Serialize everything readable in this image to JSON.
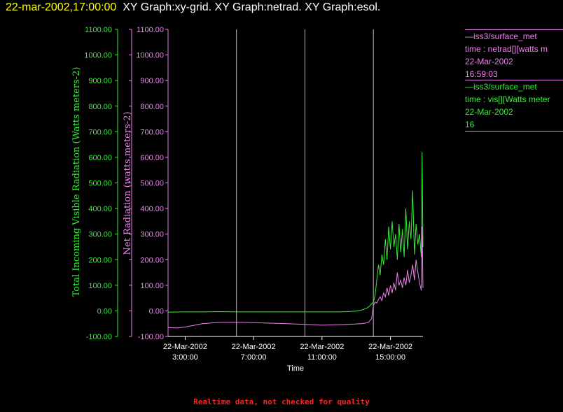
{
  "header": {
    "date_label": "22-mar-2002,17:00:00",
    "graphs_label": "XY Graph:xy-grid.  XY Graph:netrad.  XY Graph:esol."
  },
  "legend": {
    "netrad": {
      "source": "—iss3/surface_met",
      "variable": "time : netrad[][watts m",
      "date": "22-Mar-2002",
      "time": "16:59:03"
    },
    "vis": {
      "source": "—iss3/surface_met",
      "variable": "time : vis[][Watts meter",
      "date": "22-Mar-2002",
      "time": "16"
    }
  },
  "footer": {
    "note": "Realtime data, not checked for quality"
  },
  "chart_data": {
    "type": "line",
    "xlabel": "Time",
    "x_ticks": [
      {
        "date": "22-Mar-2002",
        "time": "3:00:00",
        "hour": 3
      },
      {
        "date": "22-Mar-2002",
        "time": "7:00:00",
        "hour": 7
      },
      {
        "date": "22-Mar-2002",
        "time": "11:00:00",
        "hour": 11
      },
      {
        "date": "22-Mar-2002",
        "time": "15:00:00",
        "hour": 15
      }
    ],
    "xlim_hours": [
      2.0,
      16.9
    ],
    "vertical_grid_hours": [
      6,
      10,
      14
    ],
    "y_axes": [
      {
        "id": "vis",
        "label": "Total Incoming Visible Radiation (Watts meters-2)",
        "color": "#33ee33",
        "ylim": [
          -100,
          1100
        ],
        "ticks": [
          "-100.00",
          "0.00",
          "100.00",
          "200.00",
          "300.00",
          "400.00",
          "500.00",
          "600.00",
          "700.00",
          "800.00",
          "900.00",
          "1000.00",
          "1100.00"
        ]
      },
      {
        "id": "netrad",
        "label": "Net Radiation (watts meters-2)",
        "color": "#ee82ee",
        "ylim": [
          -100,
          1100
        ],
        "ticks": [
          "-100.00",
          "0.00",
          "100.00",
          "200.00",
          "300.00",
          "400.00",
          "500.00",
          "600.00",
          "700.00",
          "800.00",
          "900.00",
          "1000.00",
          "1100.00"
        ]
      }
    ],
    "series": [
      {
        "id": "vis",
        "color": "#33ee33",
        "points": [
          [
            2.0,
            -5
          ],
          [
            3,
            -4
          ],
          [
            4,
            -4
          ],
          [
            5,
            -3
          ],
          [
            6,
            -4
          ],
          [
            7,
            -4
          ],
          [
            8,
            -4
          ],
          [
            9,
            -4
          ],
          [
            10,
            -4
          ],
          [
            11,
            -4
          ],
          [
            12,
            -4
          ],
          [
            12.5,
            -3
          ],
          [
            13,
            -1
          ],
          [
            13.3,
            3
          ],
          [
            13.6,
            10
          ],
          [
            13.8,
            20
          ],
          [
            14,
            35
          ],
          [
            14.1,
            60
          ],
          [
            14.2,
            120
          ],
          [
            14.3,
            180
          ],
          [
            14.4,
            140
          ],
          [
            14.5,
            220
          ],
          [
            14.6,
            180
          ],
          [
            14.7,
            280
          ],
          [
            14.8,
            200
          ],
          [
            14.9,
            330
          ],
          [
            15,
            240
          ],
          [
            15.1,
            350
          ],
          [
            15.2,
            250
          ],
          [
            15.3,
            300
          ],
          [
            15.4,
            200
          ],
          [
            15.5,
            340
          ],
          [
            15.6,
            230
          ],
          [
            15.7,
            320
          ],
          [
            15.8,
            210
          ],
          [
            15.9,
            400
          ],
          [
            16,
            240
          ],
          [
            16.1,
            350
          ],
          [
            16.2,
            280
          ],
          [
            16.3,
            470
          ],
          [
            16.4,
            220
          ],
          [
            16.5,
            340
          ],
          [
            16.6,
            260
          ],
          [
            16.7,
            300
          ],
          [
            16.8,
            210
          ],
          [
            16.85,
            620
          ],
          [
            16.9,
            250
          ]
        ]
      },
      {
        "id": "netrad",
        "color": "#ee82ee",
        "points": [
          [
            2.0,
            -65
          ],
          [
            2.5,
            -67
          ],
          [
            3,
            -63
          ],
          [
            4,
            -50
          ],
          [
            5,
            -45
          ],
          [
            6,
            -44
          ],
          [
            7,
            -46
          ],
          [
            8,
            -48
          ],
          [
            9,
            -50
          ],
          [
            10,
            -53
          ],
          [
            11,
            -56
          ],
          [
            12,
            -54
          ],
          [
            12.8,
            -52
          ],
          [
            13.3,
            -50
          ],
          [
            13.7,
            -46
          ],
          [
            13.9,
            -30
          ],
          [
            14,
            20
          ],
          [
            14.1,
            35
          ],
          [
            14.2,
            30
          ],
          [
            14.3,
            45
          ],
          [
            14.4,
            55
          ],
          [
            14.5,
            40
          ],
          [
            14.6,
            70
          ],
          [
            14.7,
            55
          ],
          [
            14.8,
            90
          ],
          [
            14.9,
            60
          ],
          [
            15,
            100
          ],
          [
            15.1,
            70
          ],
          [
            15.2,
            110
          ],
          [
            15.3,
            80
          ],
          [
            15.4,
            150
          ],
          [
            15.5,
            100
          ],
          [
            15.6,
            120
          ],
          [
            15.7,
            90
          ],
          [
            15.8,
            130
          ],
          [
            15.9,
            100
          ],
          [
            16,
            160
          ],
          [
            16.1,
            110
          ],
          [
            16.2,
            140
          ],
          [
            16.3,
            180
          ],
          [
            16.4,
            120
          ],
          [
            16.5,
            200
          ],
          [
            16.6,
            150
          ],
          [
            16.7,
            110
          ],
          [
            16.8,
            80
          ],
          [
            16.85,
            330
          ],
          [
            16.9,
            90
          ]
        ]
      }
    ]
  }
}
